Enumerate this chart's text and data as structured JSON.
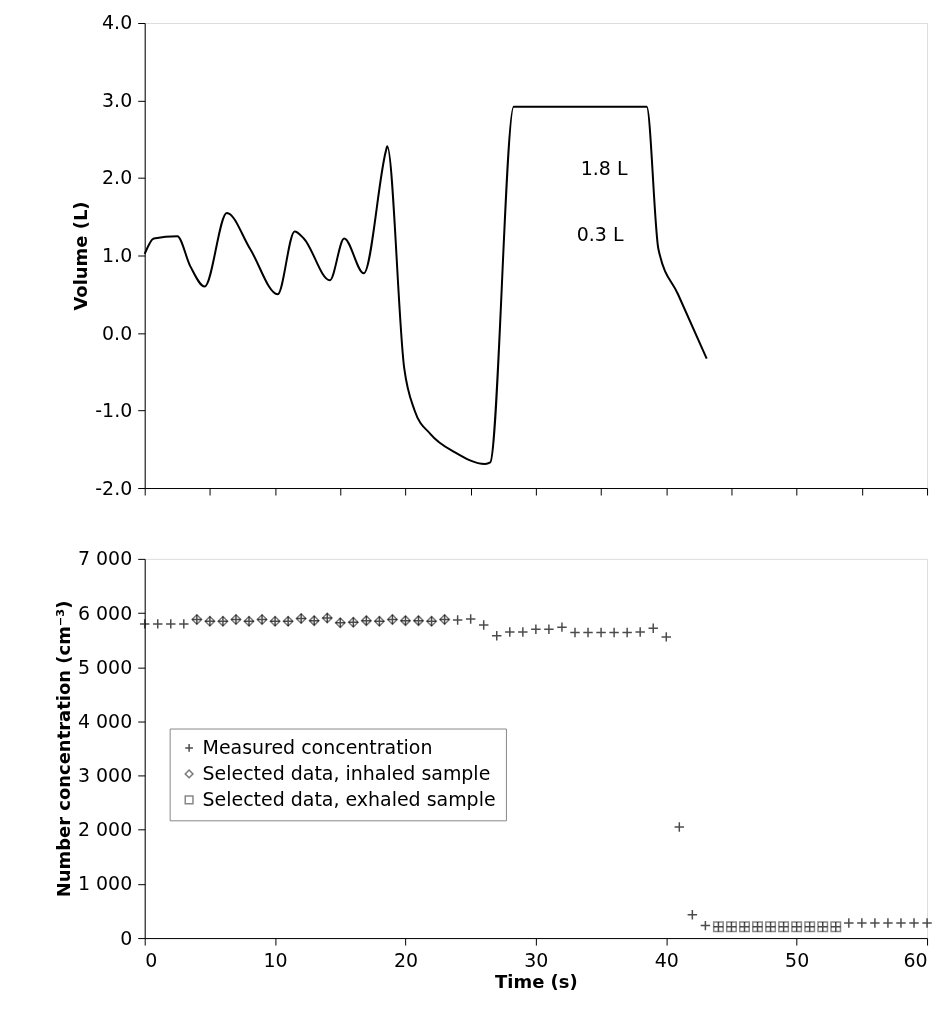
{
  "chart_data": [
    {
      "type": "line",
      "ylabel": "Volume (L)",
      "xlim": [
        0,
        60
      ],
      "xticks": [
        {
          "value": 0,
          "label": null
        },
        {
          "value": 5,
          "label": null
        },
        {
          "value": 10,
          "label": null
        },
        {
          "value": 15,
          "label": null
        },
        {
          "value": 20,
          "label": null
        },
        {
          "value": 25,
          "label": null
        },
        {
          "value": 30,
          "label": null
        },
        {
          "value": 35,
          "label": null
        },
        {
          "value": 40,
          "label": null
        },
        {
          "value": 45,
          "label": null
        },
        {
          "value": 50,
          "label": null
        },
        {
          "value": 55,
          "label": null
        },
        {
          "value": 60,
          "label": null
        }
      ],
      "ylim": [
        -2,
        4
      ],
      "yticks": [
        {
          "value": -2,
          "label": "-2.0"
        },
        {
          "value": -1,
          "label": "-1.0"
        },
        {
          "value": 0,
          "label": "0.0"
        },
        {
          "value": 1,
          "label": "1.0"
        },
        {
          "value": 2,
          "label": "2.0"
        },
        {
          "value": 3,
          "label": "3.0"
        },
        {
          "value": 4,
          "label": "4.0"
        }
      ],
      "tick_labels": "y",
      "grid": false,
      "marker": "none",
      "line_style": "solid",
      "series": [
        {
          "color": "#000000",
          "x": [
            0,
            0.7,
            2.5,
            3.5,
            4.6,
            6.3,
            8.1,
            10.2,
            11.5,
            12.2,
            14.2,
            15.3,
            16.8,
            18.5,
            18.6,
            19.9,
            20.7,
            21.9,
            23.8,
            26.1,
            26.5,
            28.3,
            38.5,
            39.4,
            40.9,
            43.1
          ],
          "values": [
            1.02,
            1.22,
            1.25,
            0.86,
            0.6,
            1.55,
            1.08,
            0.5,
            1.31,
            1.22,
            0.68,
            1.22,
            0.77,
            2.35,
            2.41,
            -0.45,
            -1.0,
            -1.3,
            -1.54,
            -1.69,
            -1.67,
            2.92,
            2.92,
            1.08,
            0.5,
            -0.33
          ]
        }
      ],
      "annotations": [
        "1.8 L",
        "0.3 L"
      ]
    },
    {
      "type": "scatter",
      "xlabel": "Time (s)",
      "ylabel": "Number concentration (cm⁻³)",
      "xlim": [
        0,
        60
      ],
      "xticks": [
        0,
        10,
        20,
        30,
        40,
        50,
        60
      ],
      "ylim": [
        0,
        7000
      ],
      "yticks": [
        0,
        {
          "value": 1000,
          "label": "1 000"
        },
        {
          "value": 2000,
          "label": "2 000"
        },
        {
          "value": 3000,
          "label": "3 000"
        },
        {
          "value": 4000,
          "label": "4 000"
        },
        {
          "value": 5000,
          "label": "5 000"
        },
        {
          "value": 6000,
          "label": "6 000"
        },
        {
          "value": 7000,
          "label": "7 000"
        }
      ],
      "grid": false,
      "legend": "left",
      "series": [
        {
          "name": "Measured concentration",
          "marker": "cross",
          "color": "#000000",
          "x": [
            0,
            1,
            2,
            3,
            4,
            5,
            6,
            7,
            8,
            9,
            10,
            11,
            12,
            13,
            14,
            15,
            16,
            17,
            18,
            19,
            20,
            21,
            22,
            23,
            24,
            25,
            26,
            27,
            28,
            29,
            30,
            31,
            32,
            33,
            34,
            35,
            36,
            37,
            38,
            39,
            40,
            41,
            42,
            43,
            44,
            45,
            46,
            47,
            48,
            49,
            50,
            51,
            52,
            53,
            54,
            55,
            56,
            57,
            58,
            59,
            60
          ],
          "values": [
            5800,
            5800,
            5800,
            5800,
            5880,
            5850,
            5850,
            5880,
            5850,
            5880,
            5850,
            5850,
            5900,
            5860,
            5910,
            5820,
            5830,
            5860,
            5850,
            5880,
            5860,
            5860,
            5850,
            5880,
            5870,
            5890,
            5780,
            5580,
            5650,
            5650,
            5700,
            5700,
            5740,
            5640,
            5640,
            5640,
            5640,
            5640,
            5650,
            5720,
            5560,
            2050,
            430,
            230,
            210,
            210,
            210,
            210,
            210,
            210,
            210,
            210,
            210,
            210,
            280,
            280,
            280,
            280,
            280,
            280,
            280
          ]
        },
        {
          "name": "Selected data, inhaled sample",
          "marker": "diamond",
          "color": "#404040",
          "x": [
            4,
            5,
            6,
            7,
            8,
            9,
            10,
            11,
            12,
            13,
            14,
            15,
            16,
            17,
            18,
            19,
            20,
            21,
            22,
            23
          ],
          "values": [
            5880,
            5850,
            5850,
            5880,
            5850,
            5880,
            5850,
            5850,
            5900,
            5860,
            5910,
            5820,
            5830,
            5860,
            5850,
            5880,
            5860,
            5860,
            5850,
            5880
          ]
        },
        {
          "name": "Selected data, exhaled sample",
          "marker": "square",
          "color": "#555555",
          "x": [
            44,
            45,
            46,
            47,
            48,
            49,
            50,
            51,
            52,
            53
          ],
          "values": [
            210,
            210,
            210,
            210,
            210,
            210,
            210,
            210,
            210,
            210
          ]
        }
      ]
    }
  ]
}
